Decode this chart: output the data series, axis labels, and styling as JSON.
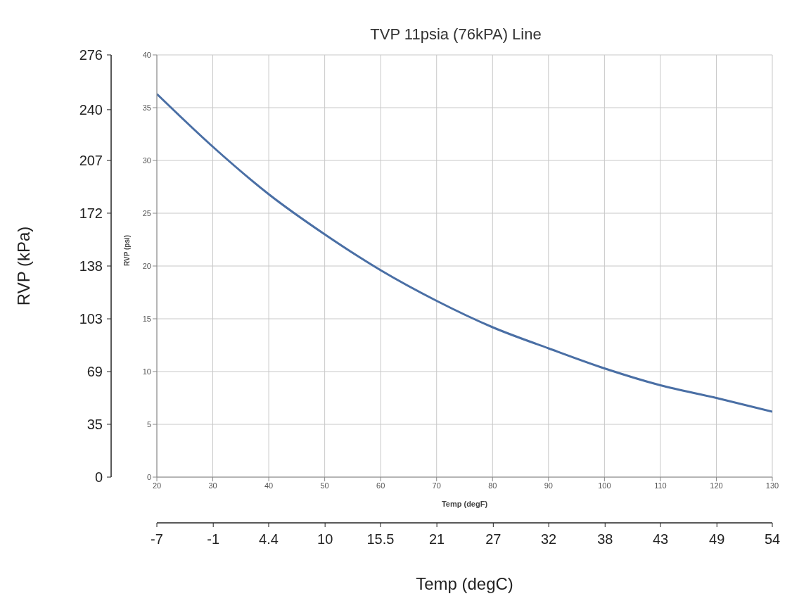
{
  "chart_data": {
    "type": "line",
    "title": "TVP 11psia (76kPA) Line",
    "xlabel": "Temp (degF)",
    "ylabel": "RVP (psi)",
    "x2label": "Temp (degC)",
    "y2label": "RVP (kPa)",
    "x": [
      20,
      30,
      40,
      50,
      60,
      70,
      80,
      90,
      100,
      110,
      120,
      130
    ],
    "series": [
      {
        "color": "#4a6fa5",
        "values": [
          36.3,
          31.3,
          26.8,
          23.0,
          19.6,
          16.7,
          14.2,
          12.2,
          10.3,
          8.7,
          7.5,
          6.2
        ]
      }
    ],
    "xlim": [
      20,
      130
    ],
    "xticks": [
      20,
      30,
      40,
      50,
      60,
      70,
      80,
      90,
      100,
      110,
      120,
      130
    ],
    "ylim": [
      0,
      40
    ],
    "yticks": [
      0,
      5,
      10,
      15,
      20,
      25,
      30,
      35,
      40
    ],
    "x2lim": [
      -6.7,
      54.4
    ],
    "x2ticks": [
      {
        "value": -6.7,
        "label": "-7"
      },
      {
        "value": -1.1,
        "label": "-1"
      },
      {
        "value": 4.4,
        "label": "4.4"
      },
      {
        "value": 10,
        "label": "10"
      },
      {
        "value": 15.5,
        "label": "15.5"
      },
      {
        "value": 21.1,
        "label": "21"
      },
      {
        "value": 26.7,
        "label": "27"
      },
      {
        "value": 32.2,
        "label": "32"
      },
      {
        "value": 37.8,
        "label": "38"
      },
      {
        "value": 43.3,
        "label": "43"
      },
      {
        "value": 48.9,
        "label": "49"
      },
      {
        "value": 54.4,
        "label": "54"
      }
    ],
    "y2lim": [
      0,
      275.8
    ],
    "y2ticks": [
      {
        "value": 0,
        "label": "0"
      },
      {
        "value": 34.5,
        "label": "35"
      },
      {
        "value": 68.9,
        "label": "69"
      },
      {
        "value": 103.4,
        "label": "103"
      },
      {
        "value": 137.9,
        "label": "138"
      },
      {
        "value": 172.4,
        "label": "172"
      },
      {
        "value": 206.8,
        "label": "207"
      },
      {
        "value": 240,
        "label": "240"
      },
      {
        "value": 275.8,
        "label": "276"
      }
    ],
    "grid": true,
    "marker": "none",
    "line_style": "solid"
  }
}
